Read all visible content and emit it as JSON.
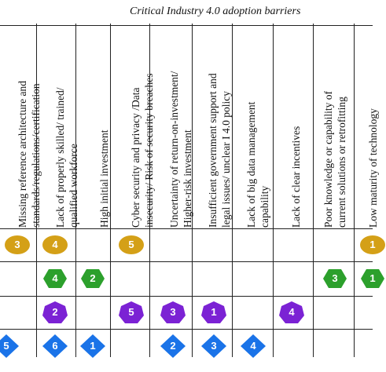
{
  "title": "Critical Industry 4.0 adoption barriers",
  "columns": [
    {
      "lines": [
        "Missing reference architecture and",
        "standards/regulations/certification"
      ]
    },
    {
      "lines": [
        "Lack of properly skilled/ trained/",
        "qualified workforce"
      ]
    },
    {
      "lines": [
        "High initial investment"
      ]
    },
    {
      "lines": [
        "Cyber security and privacy /Data",
        "insecurity/ Risk of security breaches"
      ]
    },
    {
      "lines": [
        "Uncertainty of return-on-investment/",
        "Higher-risk investment"
      ]
    },
    {
      "lines": [
        "Insufficient government support and",
        "legal issues/ unclear I 4.0 policy"
      ]
    },
    {
      "lines": [
        "Lack of big data management",
        "capability"
      ]
    },
    {
      "lines": [
        "Lack of clear incentives"
      ]
    },
    {
      "lines": [
        "Poor knowledge or capability of",
        "current solutions or retrofitting"
      ]
    },
    {
      "lines": [
        "Low maturity of technology"
      ]
    }
  ],
  "rows": [
    {
      "shape": "oval",
      "color": "#d4a017",
      "markers": [
        {
          "col": 0,
          "label": "3"
        },
        {
          "col": 1,
          "label": "4"
        },
        {
          "col": 3,
          "label": "5"
        },
        {
          "col": 9,
          "label": "1"
        }
      ]
    },
    {
      "shape": "hexagon-green",
      "color": "#2ca02c",
      "markers": [
        {
          "col": 1,
          "label": "4"
        },
        {
          "col": 2,
          "label": "2"
        },
        {
          "col": 8,
          "label": "3"
        },
        {
          "col": 9,
          "label": "1"
        }
      ]
    },
    {
      "shape": "heptagon",
      "color": "#7b22d4",
      "markers": [
        {
          "col": 1,
          "label": "2"
        },
        {
          "col": 3,
          "label": "5"
        },
        {
          "col": 4,
          "label": "3"
        },
        {
          "col": 5,
          "label": "1"
        },
        {
          "col": 7,
          "label": "4"
        }
      ]
    },
    {
      "shape": "diamond",
      "color": "#1a73e8",
      "markers": [
        {
          "col": -1,
          "label": "5"
        },
        {
          "col": 1,
          "label": "6"
        },
        {
          "col": 2,
          "label": "1"
        },
        {
          "col": 4,
          "label": "2"
        },
        {
          "col": 5,
          "label": "3"
        },
        {
          "col": 6,
          "label": "4"
        }
      ]
    }
  ]
}
